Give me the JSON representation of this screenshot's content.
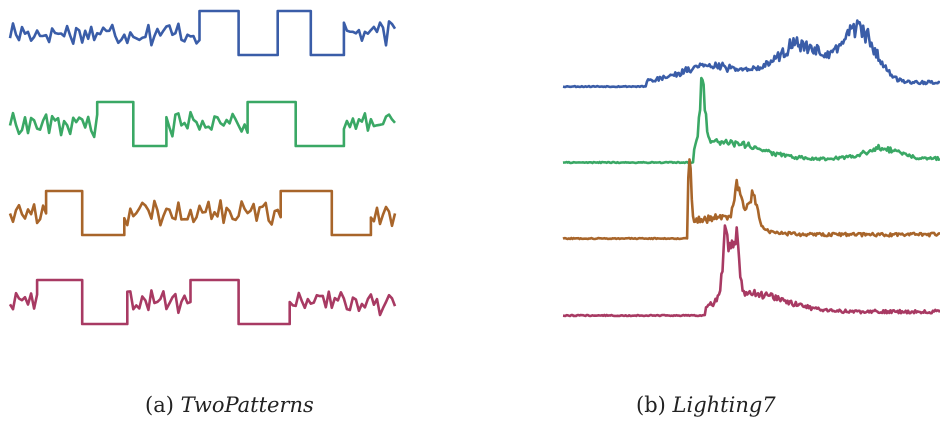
{
  "colors": [
    "#3a5da8",
    "#3aa865",
    "#a8652a",
    "#a83a63"
  ],
  "panels": [
    {
      "label": "(a)",
      "name": "TwoPatterns"
    },
    {
      "label": "(b)",
      "name": "Lighting7"
    }
  ],
  "chart_data": [
    {
      "type": "line",
      "title": "TwoPatterns",
      "xlabel": "",
      "ylabel": "",
      "axes": "none",
      "grid": false,
      "legend": "none",
      "xlim": [
        0,
        128
      ],
      "ylim": [
        -1.2,
        1.2
      ],
      "series": [
        {
          "color": "#3a5da8",
          "pattern": [
            {
              "kind": "noise",
              "start": 0,
              "end": 63
            },
            {
              "kind": "high",
              "start": 63,
              "end": 76
            },
            {
              "kind": "low",
              "start": 76,
              "end": 89
            },
            {
              "kind": "high",
              "start": 89,
              "end": 100
            },
            {
              "kind": "low",
              "start": 100,
              "end": 111
            },
            {
              "kind": "noise",
              "start": 111,
              "end": 128
            }
          ]
        },
        {
          "color": "#3aa865",
          "pattern": [
            {
              "kind": "noise",
              "start": 0,
              "end": 29
            },
            {
              "kind": "high",
              "start": 29,
              "end": 41
            },
            {
              "kind": "low",
              "start": 41,
              "end": 52
            },
            {
              "kind": "noise",
              "start": 52,
              "end": 79
            },
            {
              "kind": "high",
              "start": 79,
              "end": 95
            },
            {
              "kind": "low",
              "start": 95,
              "end": 111
            },
            {
              "kind": "noise",
              "start": 111,
              "end": 128
            }
          ]
        },
        {
          "color": "#a8652a",
          "pattern": [
            {
              "kind": "noise",
              "start": 0,
              "end": 12
            },
            {
              "kind": "high",
              "start": 12,
              "end": 24
            },
            {
              "kind": "low",
              "start": 24,
              "end": 38
            },
            {
              "kind": "noise",
              "start": 38,
              "end": 90
            },
            {
              "kind": "high",
              "start": 90,
              "end": 107
            },
            {
              "kind": "low",
              "start": 107,
              "end": 120
            },
            {
              "kind": "noise",
              "start": 120,
              "end": 128
            }
          ]
        },
        {
          "color": "#a83a63",
          "pattern": [
            {
              "kind": "noise",
              "start": 0,
              "end": 9
            },
            {
              "kind": "high",
              "start": 9,
              "end": 24
            },
            {
              "kind": "low",
              "start": 24,
              "end": 39
            },
            {
              "kind": "noise",
              "start": 39,
              "end": 60
            },
            {
              "kind": "high",
              "start": 60,
              "end": 76
            },
            {
              "kind": "low",
              "start": 76,
              "end": 93
            },
            {
              "kind": "noise",
              "start": 93,
              "end": 128
            }
          ]
        }
      ]
    },
    {
      "type": "line",
      "title": "Lighting7",
      "xlabel": "",
      "ylabel": "",
      "axes": "none",
      "grid": false,
      "legend": "none",
      "xlim": [
        0,
        319
      ],
      "ylim": [
        0,
        1
      ],
      "series": [
        {
          "color": "#3a5da8",
          "baseline": 0.05,
          "flat_until": 70,
          "bumps": [
            {
              "at": 125,
              "width": 35,
              "height": 0.25
            },
            {
              "at": 200,
              "width": 30,
              "height": 0.55
            },
            {
              "at": 250,
              "width": 20,
              "height": 0.75
            }
          ]
        },
        {
          "color": "#3aa865",
          "baseline": 0.05,
          "flat_until": 110,
          "bumps": [
            {
              "at": 118,
              "width": 3,
              "height": 1.0
            },
            {
              "at": 135,
              "width": 40,
              "height": 0.25
            },
            {
              "at": 270,
              "width": 20,
              "height": 0.15
            }
          ]
        },
        {
          "color": "#a8652a",
          "baseline": 0.05,
          "flat_until": 105,
          "bumps": [
            {
              "at": 107,
              "width": 2,
              "height": 1.0
            },
            {
              "at": 148,
              "width": 4,
              "height": 0.55
            },
            {
              "at": 160,
              "width": 6,
              "height": 0.45
            },
            {
              "at": 130,
              "width": 35,
              "height": 0.25
            }
          ]
        },
        {
          "color": "#a83a63",
          "baseline": 0.05,
          "flat_until": 120,
          "bumps": [
            {
              "at": 138,
              "width": 4,
              "height": 0.95
            },
            {
              "at": 146,
              "width": 4,
              "height": 0.95
            },
            {
              "at": 160,
              "width": 40,
              "height": 0.25
            }
          ]
        }
      ]
    }
  ]
}
